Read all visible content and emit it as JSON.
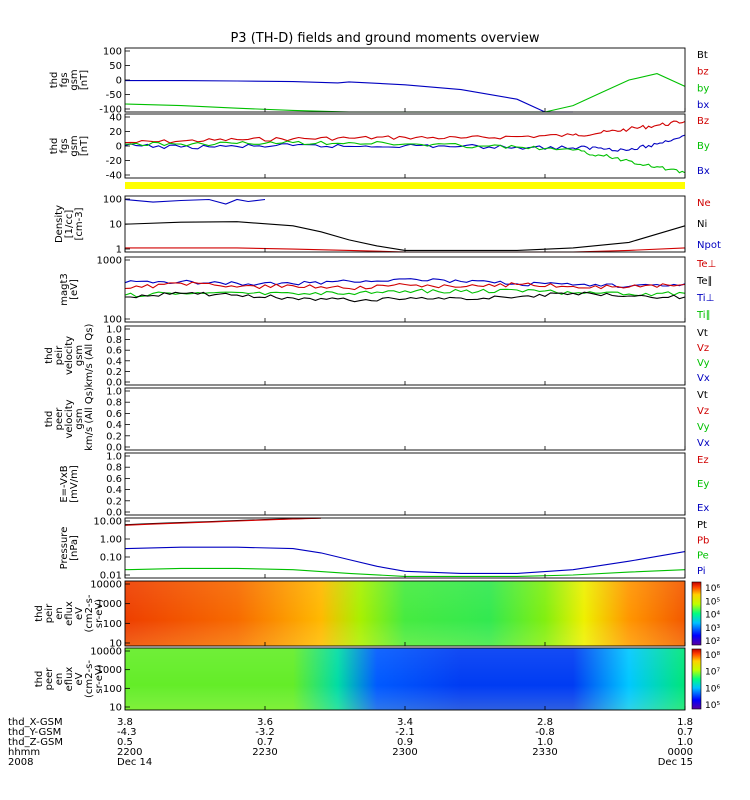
{
  "chart_data": {
    "type": "line",
    "title": "P3 (TH-D) fields and ground moments overview",
    "panels": [
      {
        "id": "fgs-gsm",
        "ylabel": [
          "thd",
          "fgs",
          "gsm",
          "[nT]"
        ],
        "yticks": [
          "100",
          "50",
          "0",
          "-50",
          "-100"
        ],
        "ylim": [
          -100,
          100
        ],
        "legend": [
          {
            "label": "Bt",
            "color": "#000000"
          },
          {
            "label": "bz",
            "color": "#d00000"
          },
          {
            "label": "by",
            "color": "#00c000"
          },
          {
            "label": "bx",
            "color": "#0000c0"
          }
        ],
        "series": [
          {
            "color": "#0000c0",
            "x": [
              0,
              0.1,
              0.2,
              0.3,
              0.38,
              0.4,
              0.5,
              0.6,
              0.7,
              0.75,
              0.7,
              0.8
            ],
            "y": [
              -2,
              -2,
              -3,
              -5,
              -9,
              -6,
              -15,
              -30,
              -60,
              -100,
              -100,
              -100
            ]
          },
          {
            "color": "#00c000",
            "x": [
              0,
              0.1,
              0.2,
              0.3,
              0.4,
              0.5,
              0.6,
              0.7,
              0.75,
              0.8,
              0.85,
              0.9,
              0.95,
              1.0
            ],
            "y": [
              -75,
              -80,
              -88,
              -95,
              -100,
              -100,
              -100,
              -100,
              -100,
              -80,
              -40,
              0,
              20,
              -20
            ]
          }
        ]
      },
      {
        "id": "fgs-gsm-dsl",
        "ylabel": [
          "thd",
          "fgs",
          "gsm",
          "[nT]"
        ],
        "yticks": [
          "40",
          "20",
          "0",
          "-20",
          "-40"
        ],
        "ylim": [
          -45,
          40
        ],
        "legend": [
          {
            "label": "Bz",
            "color": "#d00000"
          },
          {
            "label": "By",
            "color": "#00c000"
          },
          {
            "label": "Bx",
            "color": "#0000c0"
          }
        ],
        "series": [
          {
            "color": "#d00000",
            "x": [
              0,
              0.1,
              0.2,
              0.3,
              0.4,
              0.5,
              0.6,
              0.7,
              0.8,
              0.85,
              0.9,
              0.95,
              1.0
            ],
            "y": [
              2,
              4,
              6,
              7,
              8,
              9,
              8,
              10,
              12,
              15,
              20,
              25,
              30
            ]
          },
          {
            "color": "#0000c0",
            "x": [
              0,
              0.1,
              0.2,
              0.3,
              0.4,
              0.5,
              0.6,
              0.7,
              0.8,
              0.85,
              0.9,
              0.95,
              1.0
            ],
            "y": [
              -2,
              -4,
              -3,
              -2,
              -3,
              -2,
              -3,
              -4,
              -5,
              -5,
              -8,
              0,
              12
            ]
          },
          {
            "color": "#00c000",
            "x": [
              0,
              0.1,
              0.2,
              0.3,
              0.4,
              0.5,
              0.6,
              0.7,
              0.8,
              0.85,
              0.9,
              0.95,
              1.0
            ],
            "y": [
              0,
              0,
              1,
              2,
              2,
              0,
              -2,
              -4,
              -8,
              -15,
              -22,
              -30,
              -38
            ]
          }
        ]
      },
      {
        "id": "moments-density",
        "ylabel": [
          "Density",
          "[1/cc]",
          "[cm-3]"
        ],
        "yticks": [
          "100",
          "10",
          "1"
        ],
        "scale": "log",
        "ylim": [
          0.5,
          300
        ],
        "legend": [
          {
            "label": "Ne",
            "color": "#d00000"
          },
          {
            "label": "Ni",
            "color": "#000000"
          },
          {
            "label": "Npot",
            "color": "#0000c0"
          }
        ],
        "series": [
          {
            "color": "#000000",
            "x": [
              0,
              0.1,
              0.2,
              0.3,
              0.35,
              0.4,
              0.45,
              0.5,
              0.6,
              0.7,
              0.8,
              0.9,
              1.0
            ],
            "y": [
              12,
              15,
              16,
              10,
              5,
              2,
              1,
              0.6,
              0.6,
              0.6,
              0.8,
              1.5,
              10
            ]
          },
          {
            "color": "#d00000",
            "x": [
              0,
              0.1,
              0.2,
              0.3,
              0.4,
              0.5,
              0.6,
              0.7,
              0.8,
              0.9,
              1.0
            ],
            "y": [
              0.8,
              0.8,
              0.8,
              0.7,
              0.6,
              0.5,
              0.5,
              0.5,
              0.5,
              0.6,
              0.8
            ]
          },
          {
            "color": "#0000c0",
            "x": [
              0,
              0.05,
              0.1,
              0.15,
              0.18,
              0.2,
              0.22,
              0.25
            ],
            "y": [
              200,
              150,
              180,
              200,
              120,
              200,
              160,
              200
            ]
          }
        ]
      },
      {
        "id": "temperature",
        "ylabel": [
          "magt3",
          "[eV]"
        ],
        "yticks": [
          "1000",
          "100"
        ],
        "scale": "log",
        "ylim": [
          100,
          1200
        ],
        "legend": [
          {
            "label": "Te⊥",
            "color": "#d00000"
          },
          {
            "label": "Te∥",
            "color": "#000000"
          },
          {
            "label": "Ti⊥",
            "color": "#0000c0"
          },
          {
            "label": "Ti∥",
            "color": "#00c000"
          }
        ],
        "series": [
          {
            "color": "#0000c0",
            "x": [
              0,
              0.1,
              0.2,
              0.3,
              0.4,
              0.5,
              0.6,
              0.7,
              0.8,
              0.9,
              1.0
            ],
            "y": [
              450,
              470,
              440,
              430,
              480,
              520,
              470,
              430,
              410,
              390,
              430
            ]
          },
          {
            "color": "#d00000",
            "x": [
              0,
              0.1,
              0.2,
              0.3,
              0.4,
              0.5,
              0.6,
              0.7,
              0.8,
              0.9,
              1.0
            ],
            "y": [
              360,
              440,
              380,
              400,
              360,
              420,
              380,
              420,
              390,
              380,
              420
            ]
          },
          {
            "color": "#00c000",
            "x": [
              0,
              0.1,
              0.2,
              0.3,
              0.4,
              0.5,
              0.6,
              0.7,
              0.8,
              0.9,
              1.0
            ],
            "y": [
              280,
              300,
              310,
              300,
              300,
              330,
              320,
              340,
              300,
              290,
              300
            ]
          },
          {
            "color": "#000000",
            "x": [
              0,
              0.1,
              0.2,
              0.3,
              0.4,
              0.5,
              0.6,
              0.7,
              0.8,
              0.9,
              1.0
            ],
            "y": [
              260,
              300,
              280,
              250,
              230,
              240,
              250,
              260,
              300,
              270,
              260
            ]
          }
        ]
      },
      {
        "id": "peir-velocity",
        "ylabel": [
          "thd",
          "peir",
          "velocity",
          "gsm",
          "km/s (All Qs)"
        ],
        "yticks": [
          "1.0",
          "0.8",
          "0.6",
          "0.4",
          "0.2",
          "0.0"
        ],
        "ylim": [
          0,
          1
        ],
        "legend": [
          {
            "label": "Vt",
            "color": "#000000"
          },
          {
            "label": "Vz",
            "color": "#d00000"
          },
          {
            "label": "Vy",
            "color": "#00c000"
          },
          {
            "label": "Vx",
            "color": "#0000c0"
          }
        ],
        "series": []
      },
      {
        "id": "peer-velocity",
        "ylabel": [
          "thd",
          "peer",
          "velocity",
          "gsm",
          "km/s (All Qs)"
        ],
        "yticks": [
          "1.0",
          "0.8",
          "0.6",
          "0.4",
          "0.2",
          "0.0"
        ],
        "ylim": [
          0,
          1
        ],
        "legend": [
          {
            "label": "Vt",
            "color": "#000000"
          },
          {
            "label": "Vz",
            "color": "#d00000"
          },
          {
            "label": "Vy",
            "color": "#00c000"
          },
          {
            "label": "Vx",
            "color": "#0000c0"
          }
        ],
        "series": []
      },
      {
        "id": "efield",
        "ylabel": [
          "E=-VxB",
          "[mV/m]"
        ],
        "yticks": [
          "1.0",
          "0.8",
          "0.6",
          "0.4",
          "0.2",
          "0.0"
        ],
        "ylim": [
          0,
          1
        ],
        "legend": [
          {
            "label": "Ez",
            "color": "#d00000"
          },
          {
            "label": "Ey",
            "color": "#00c000"
          },
          {
            "label": "Ex",
            "color": "#0000c0"
          }
        ],
        "series": []
      },
      {
        "id": "pressure",
        "ylabel": [
          "Pressure",
          "[nPa]"
        ],
        "yticks": [
          "10.00",
          "1.00",
          "0.10",
          "0.01"
        ],
        "scale": "log",
        "ylim": [
          0.008,
          30
        ],
        "legend": [
          {
            "label": "Pt",
            "color": "#000000"
          },
          {
            "label": "Pb",
            "color": "#d00000"
          },
          {
            "label": "Pe",
            "color": "#00c000"
          },
          {
            "label": "Pi",
            "color": "#0000c0"
          }
        ],
        "series": [
          {
            "color": "#000000",
            "x": [
              0,
              0.05,
              0.1,
              0.15,
              0.2,
              0.25,
              0.3,
              0.35
            ],
            "y": [
              12,
              14,
              16,
              18,
              21,
              24,
              27,
              30
            ]
          },
          {
            "color": "#d00000",
            "x": [
              0,
              0.05,
              0.1,
              0.15,
              0.2,
              0.25,
              0.3,
              0.35
            ],
            "y": [
              11,
              13,
              15,
              17,
              20,
              23,
              26,
              29
            ]
          },
          {
            "color": "#0000c0",
            "x": [
              0,
              0.1,
              0.2,
              0.3,
              0.35,
              0.4,
              0.45,
              0.5,
              0.6,
              0.7,
              0.8,
              0.9,
              1.0
            ],
            "y": [
              0.45,
              0.55,
              0.55,
              0.45,
              0.25,
              0.1,
              0.04,
              0.02,
              0.015,
              0.015,
              0.025,
              0.08,
              0.3
            ]
          },
          {
            "color": "#00c000",
            "x": [
              0,
              0.1,
              0.2,
              0.3,
              0.4,
              0.5,
              0.6,
              0.7,
              0.8,
              0.9,
              1.0
            ],
            "y": [
              0.025,
              0.03,
              0.03,
              0.025,
              0.015,
              0.01,
              0.01,
              0.01,
              0.012,
              0.018,
              0.025
            ]
          }
        ]
      },
      {
        "id": "peir-spec",
        "type": "heatmap",
        "ylabel": [
          "thd",
          "peir",
          "en",
          "eflux",
          "eV",
          "(cm2-s-",
          "sr-eV)"
        ],
        "yticks": [
          "10000",
          "1000",
          "100",
          "10"
        ],
        "colorbar_ticks": [
          "10⁶",
          "10⁵",
          "10⁴",
          "10³",
          "10²"
        ],
        "profile": [
          {
            "x": 0,
            "level": 0.95
          },
          {
            "x": 0.2,
            "level": 0.9
          },
          {
            "x": 0.35,
            "level": 0.8
          },
          {
            "x": 0.42,
            "level": 0.62
          },
          {
            "x": 0.5,
            "level": 0.52
          },
          {
            "x": 0.65,
            "level": 0.5
          },
          {
            "x": 0.75,
            "level": 0.58
          },
          {
            "x": 0.82,
            "level": 0.7
          },
          {
            "x": 0.9,
            "level": 0.85
          },
          {
            "x": 1,
            "level": 0.92
          }
        ]
      },
      {
        "id": "peer-spec",
        "type": "heatmap",
        "ylabel": [
          "thd",
          "peer",
          "en",
          "eflux",
          "eV",
          "(cm2-s-",
          "sr-eV)"
        ],
        "yticks": [
          "10000",
          "1000",
          "100",
          "10"
        ],
        "colorbar_ticks": [
          "10⁸",
          "10⁷",
          "10⁶",
          "10⁵"
        ],
        "profile": [
          {
            "x": 0,
            "level": 0.55
          },
          {
            "x": 0.3,
            "level": 0.55
          },
          {
            "x": 0.38,
            "level": 0.4
          },
          {
            "x": 0.45,
            "level": 0.15
          },
          {
            "x": 0.6,
            "level": 0.1
          },
          {
            "x": 0.8,
            "level": 0.1
          },
          {
            "x": 0.9,
            "level": 0.3
          },
          {
            "x": 1,
            "level": 0.45
          }
        ]
      }
    ],
    "xaxis": {
      "rows": [
        {
          "label": "thd_X-GSM",
          "values": [
            "3.8",
            "3.6",
            "3.4",
            "2.8",
            "1.8"
          ]
        },
        {
          "label": "thd_Y-GSM",
          "values": [
            "-4.3",
            "-3.2",
            "-2.1",
            "-0.8",
            "0.7"
          ]
        },
        {
          "label": "thd_Z-GSM",
          "values": [
            "0.5",
            "0.7",
            "0.9",
            "1.0",
            "1.0"
          ]
        },
        {
          "label": "hhmm",
          "values": [
            "2200",
            "2230",
            "2300",
            "2330",
            "0000"
          ]
        },
        {
          "label": "2008",
          "values": [
            "Dec 14",
            "",
            "",
            "",
            "Dec 15"
          ]
        }
      ],
      "tick_positions": [
        0,
        0.25,
        0.5,
        0.75,
        1.0
      ]
    }
  }
}
